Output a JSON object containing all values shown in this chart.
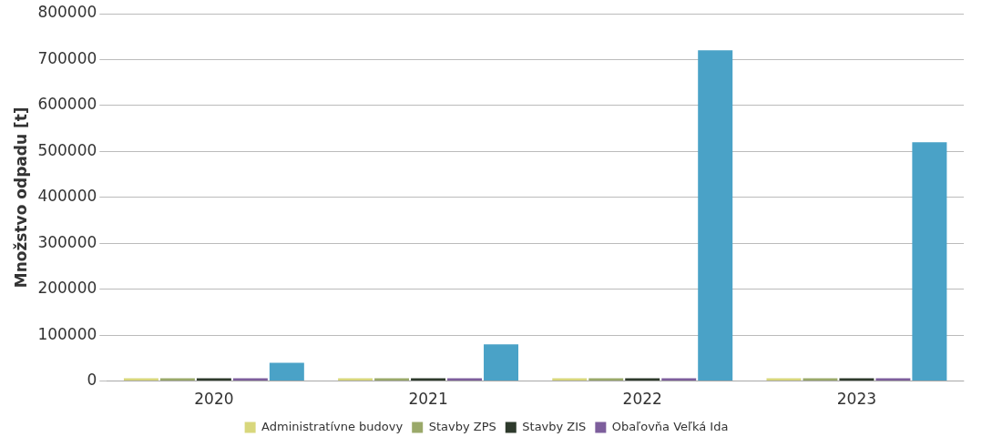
{
  "chart_data": {
    "type": "bar",
    "ylabel": "Množstvo odpadu [t]",
    "categories": [
      "2020",
      "2021",
      "2022",
      "2023"
    ],
    "series": [
      {
        "name": "Administratívne budovy",
        "color": "#d8d77c",
        "values": [
          0,
          0,
          0,
          0
        ]
      },
      {
        "name": "Stavby ZPS",
        "color": "#9aa96a",
        "values": [
          0,
          0,
          0,
          0
        ]
      },
      {
        "name": "Stavby ZIS",
        "color": "#2e3a2c",
        "values": [
          0,
          0,
          0,
          0
        ]
      },
      {
        "name": "Obaľovňa Veľká Ida",
        "color": "#7d5e9c",
        "values": [
          0,
          0,
          0,
          0
        ]
      },
      {
        "color": "#4aa2c7",
        "values": [
          40000,
          80000,
          720000,
          520000
        ]
      }
    ],
    "ylim": [
      0,
      800000
    ],
    "yticks": [
      0,
      100000,
      200000,
      300000,
      400000,
      500000,
      600000,
      700000,
      800000
    ],
    "grid": "y",
    "legend": "bottom"
  }
}
